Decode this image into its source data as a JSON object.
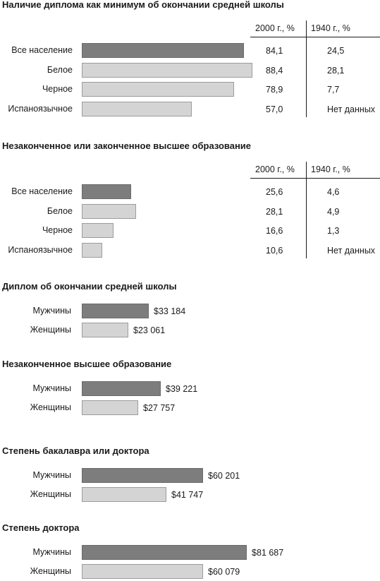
{
  "colors": {
    "dark_bar": "#7d7d7d",
    "light_bar": "#d4d4d4"
  },
  "chart_data": [
    {
      "type": "bar",
      "title": "Наличие диплома как минимум об окончании средней школы",
      "columns": [
        "2000 г., %",
        "1940 г., %"
      ],
      "categories": [
        "Все население",
        "Белое",
        "Черное",
        "Испаноязычное"
      ],
      "series": [
        {
          "values": [
            84.1,
            88.4,
            78.9,
            57.0
          ]
        }
      ],
      "values_2000_text": [
        "84,1",
        "88,4",
        "78,9",
        "57,0"
      ],
      "values_1940_text": [
        "24,5",
        "28,1",
        "7,7",
        "Нет данных"
      ]
    },
    {
      "type": "bar",
      "title": "Незаконченное или законченное высшее образование",
      "columns": [
        "2000 г., %",
        "1940 г., %"
      ],
      "categories": [
        "Все население",
        "Белое",
        "Черное",
        "Испаноязычное"
      ],
      "series": [
        {
          "values": [
            25.6,
            28.1,
            16.6,
            10.6
          ]
        }
      ],
      "values_2000_text": [
        "25,6",
        "28,1",
        "16,6",
        "10,6"
      ],
      "values_1940_text": [
        "4,6",
        "4,9",
        "1,3",
        "Нет данных"
      ]
    },
    {
      "type": "bar",
      "title": "Диплом об окончании средней школы",
      "categories": [
        "Мужчины",
        "Женщины"
      ],
      "series": [
        {
          "values": [
            33184,
            23061
          ]
        }
      ],
      "value_labels": [
        "$33 184",
        "$23 061"
      ]
    },
    {
      "type": "bar",
      "title": "Незаконченное высшее образование",
      "categories": [
        "Мужчины",
        "Женщины"
      ],
      "series": [
        {
          "values": [
            39221,
            27757
          ]
        }
      ],
      "value_labels": [
        "$39 221",
        "$27 757"
      ]
    },
    {
      "type": "bar",
      "title": "Степень бакалавра или доктора",
      "categories": [
        "Мужчины",
        "Женщины"
      ],
      "series": [
        {
          "values": [
            60201,
            41747
          ]
        }
      ],
      "value_labels": [
        "$60 201",
        "$41 747"
      ]
    },
    {
      "type": "bar",
      "title": "Степень доктора",
      "categories": [
        "Мужчины",
        "Женщины"
      ],
      "series": [
        {
          "values": [
            81687,
            60079
          ]
        }
      ],
      "value_labels": [
        "$81 687",
        "$60 079"
      ]
    }
  ]
}
